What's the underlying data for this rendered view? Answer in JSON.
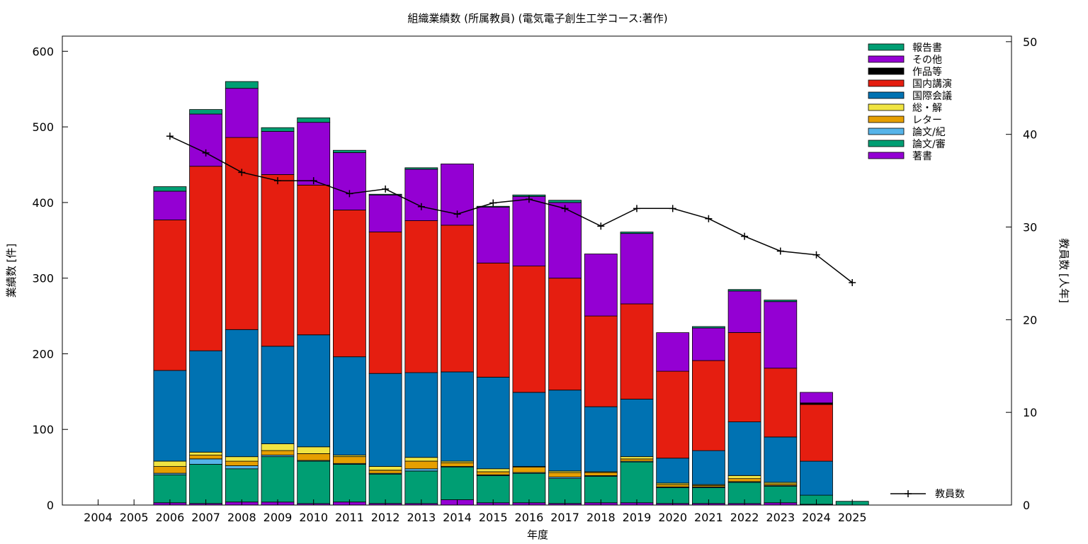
{
  "chart_data": {
    "type": "bar",
    "stacked": true,
    "title": "組織業績数 (所属教員) (電気電子創生工学コース:著作)",
    "xlabel": "年度",
    "ylabel": "業績数 [件]",
    "y2label": "教員数 [人年]",
    "ylim": [
      0,
      620
    ],
    "yticks": [
      "0",
      "100",
      "200",
      "300",
      "400",
      "500",
      "600"
    ],
    "y2lim": [
      0,
      50.6
    ],
    "y2ticks": [
      "0",
      "10",
      "20",
      "30",
      "40",
      "50"
    ],
    "grid": false,
    "legend_position": "top-right",
    "categories": [
      "2004",
      "2005",
      "2006",
      "2007",
      "2008",
      "2009",
      "2010",
      "2011",
      "2012",
      "2013",
      "2014",
      "2015",
      "2016",
      "2017",
      "2018",
      "2019",
      "2020",
      "2021",
      "2022",
      "2023",
      "2024",
      "2025"
    ],
    "series": [
      {
        "name": "著書",
        "color": "#9400d3",
        "values": [
          0,
          0,
          3,
          2,
          4,
          4,
          2,
          4,
          2,
          2,
          7,
          3,
          3,
          2,
          3,
          3,
          2,
          2,
          2,
          3,
          1,
          0
        ]
      },
      {
        "name": "論文/審",
        "color": "#009e73",
        "values": [
          0,
          0,
          37,
          52,
          44,
          60,
          56,
          50,
          39,
          43,
          43,
          36,
          39,
          33,
          35,
          54,
          21,
          21,
          28,
          22,
          12,
          5
        ]
      },
      {
        "name": "論文/紀",
        "color": "#56b4e9",
        "values": [
          0,
          0,
          2,
          7,
          4,
          2,
          1,
          1,
          1,
          3,
          1,
          1,
          1,
          2,
          1,
          1,
          1,
          1,
          1,
          1,
          0,
          0
        ]
      },
      {
        "name": "レター",
        "color": "#e69f00",
        "values": [
          0,
          0,
          9,
          5,
          6,
          6,
          9,
          9,
          4,
          10,
          5,
          4,
          7,
          6,
          4,
          3,
          3,
          2,
          4,
          2,
          0,
          0
        ]
      },
      {
        "name": "総・解",
        "color": "#f0e442",
        "values": [
          0,
          0,
          7,
          4,
          6,
          9,
          9,
          2,
          5,
          5,
          2,
          4,
          1,
          2,
          1,
          3,
          2,
          1,
          4,
          2,
          0,
          0
        ]
      },
      {
        "name": "国際会議",
        "color": "#0072b2",
        "values": [
          0,
          0,
          120,
          134,
          168,
          129,
          148,
          130,
          123,
          112,
          118,
          121,
          98,
          107,
          86,
          76,
          33,
          45,
          71,
          60,
          45,
          0
        ]
      },
      {
        "name": "国内講演",
        "color": "#e51e10",
        "values": [
          0,
          0,
          199,
          244,
          254,
          227,
          198,
          194,
          187,
          201,
          194,
          151,
          167,
          148,
          120,
          126,
          115,
          119,
          118,
          91,
          75,
          0
        ]
      },
      {
        "name": "作品等",
        "color": "#000000",
        "values": [
          0,
          0,
          0,
          0,
          0,
          0,
          0,
          0,
          0,
          0,
          0,
          0,
          0,
          0,
          0,
          0,
          0,
          0,
          0,
          0,
          2,
          0
        ]
      },
      {
        "name": "その他",
        "color": "#9400d3",
        "values": [
          0,
          0,
          38,
          69,
          65,
          57,
          83,
          76,
          49,
          68,
          81,
          74,
          92,
          100,
          82,
          93,
          51,
          43,
          55,
          88,
          14,
          0
        ]
      },
      {
        "name": "報告書",
        "color": "#009e73",
        "values": [
          0,
          0,
          6,
          6,
          9,
          5,
          6,
          3,
          1,
          2,
          0,
          1,
          2,
          3,
          0,
          2,
          0,
          2,
          2,
          2,
          0,
          0
        ]
      }
    ],
    "line_series": {
      "name": "教員数",
      "axis": "y2",
      "color": "#000000",
      "values": [
        null,
        null,
        39.8,
        38.0,
        35.9,
        35.0,
        35.0,
        33.6,
        34.1,
        32.2,
        31.4,
        32.6,
        33.0,
        32.0,
        30.1,
        32.0,
        32.0,
        30.9,
        29.0,
        27.4,
        27.0,
        24.0
      ]
    }
  }
}
